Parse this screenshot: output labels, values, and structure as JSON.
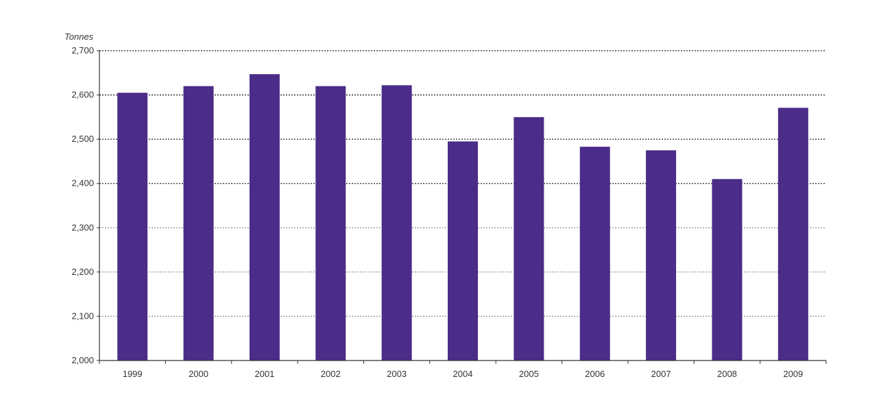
{
  "chart_data": {
    "type": "bar",
    "title": "",
    "ylabel": "Tonnes",
    "xlabel": "",
    "categories": [
      "1999",
      "2000",
      "2001",
      "2002",
      "2003",
      "2004",
      "2005",
      "2006",
      "2007",
      "2008",
      "2009"
    ],
    "values": [
      2605,
      2620,
      2647,
      2620,
      2622,
      2495,
      2550,
      2483,
      2475,
      2410,
      2571
    ],
    "ylim": [
      2000,
      2700
    ],
    "yticks": [
      "2,000",
      "2,100",
      "2,200",
      "2,300",
      "2,400",
      "2,500",
      "2,600",
      "2,700"
    ],
    "grid": true,
    "legend": "none",
    "bar_color": "#4b2c88"
  }
}
